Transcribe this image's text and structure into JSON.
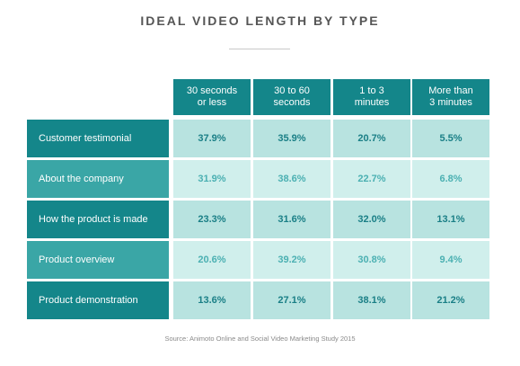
{
  "title": "IDEAL VIDEO LENGTH BY TYPE",
  "source": "Source: Animoto Online and Social Video Marketing Study 2015",
  "colors": {
    "dark_teal": "#14868a",
    "medium_teal": "#3aa6a6",
    "value_light": "#b8e3e0",
    "value_lighter": "#d0efec",
    "value_text_dark": "#1a7f86",
    "value_text_light": "#4bb0b2"
  },
  "chart_data": {
    "type": "table",
    "title": "IDEAL VIDEO LENGTH BY TYPE",
    "columns": [
      "30 seconds\nor less",
      "30 to 60\nseconds",
      "1 to 3\nminutes",
      "More than\n3 minutes"
    ],
    "rows": [
      {
        "label": "Customer testimonial",
        "values": [
          "37.9%",
          "35.9%",
          "20.7%",
          "5.5%"
        ]
      },
      {
        "label": "About the company",
        "values": [
          "31.9%",
          "38.6%",
          "22.7%",
          "6.8%"
        ]
      },
      {
        "label": "How the product is made",
        "values": [
          "23.3%",
          "31.6%",
          "32.0%",
          "13.1%"
        ]
      },
      {
        "label": "Product overview",
        "values": [
          "20.6%",
          "39.2%",
          "30.8%",
          "9.4%"
        ]
      },
      {
        "label": "Product demonstration",
        "values": [
          "13.6%",
          "27.1%",
          "38.1%",
          "21.2%"
        ]
      }
    ]
  }
}
